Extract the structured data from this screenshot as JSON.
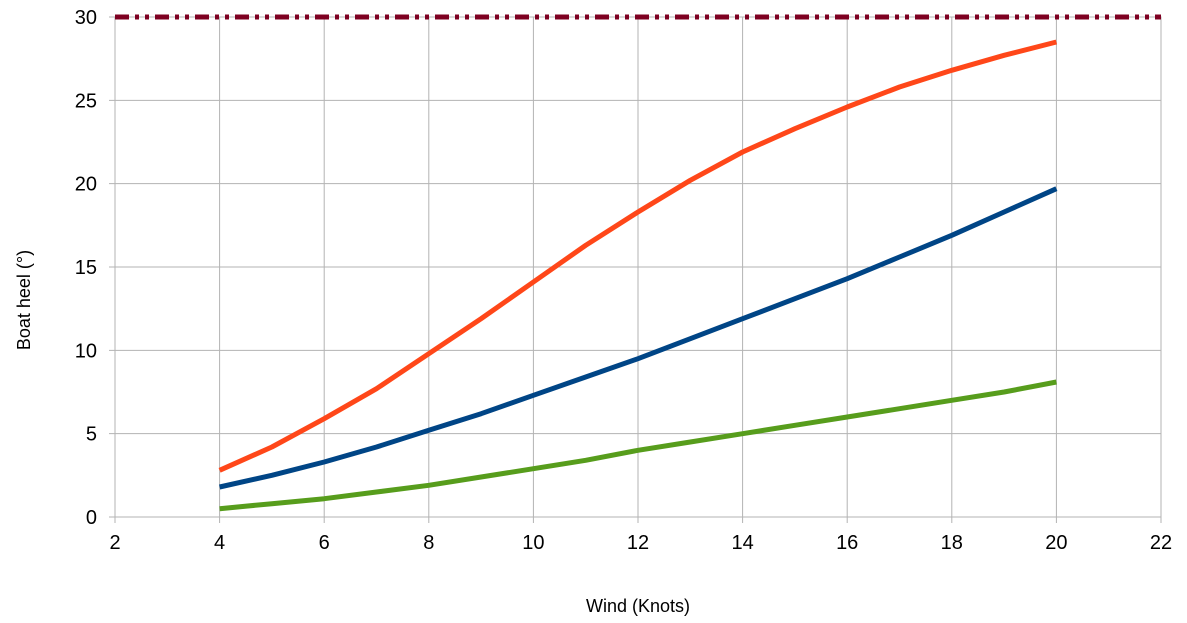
{
  "chart_data": {
    "type": "line",
    "title": "",
    "xlabel": "Wind (Knots)",
    "ylabel": "Boat heel (°)",
    "xlim": [
      2,
      22
    ],
    "ylim": [
      0,
      30
    ],
    "x_ticks": [
      2,
      4,
      6,
      8,
      10,
      12,
      14,
      16,
      18,
      20,
      22
    ],
    "y_ticks": [
      0,
      5,
      10,
      15,
      20,
      25,
      30
    ],
    "grid": true,
    "legend": "none",
    "series": [
      {
        "color": "#ff4719",
        "style": "solid",
        "x": [
          4,
          5,
          6,
          7,
          8,
          9,
          10,
          11,
          12,
          13,
          14,
          15,
          16,
          17,
          18,
          19,
          20
        ],
        "y": [
          2.8,
          4.2,
          5.9,
          7.7,
          9.8,
          11.9,
          14.1,
          16.3,
          18.3,
          20.2,
          21.9,
          23.3,
          24.6,
          25.8,
          26.8,
          27.7,
          28.5
        ]
      },
      {
        "color": "#004586",
        "style": "solid",
        "x": [
          4,
          5,
          6,
          7,
          8,
          9,
          10,
          11,
          12,
          13,
          14,
          15,
          16,
          17,
          18,
          19,
          20
        ],
        "y": [
          1.8,
          2.5,
          3.3,
          4.2,
          5.2,
          6.2,
          7.3,
          8.4,
          9.5,
          10.7,
          11.9,
          13.1,
          14.3,
          15.6,
          16.9,
          18.3,
          19.7
        ]
      },
      {
        "color": "#579d1c",
        "style": "solid",
        "x": [
          4,
          5,
          6,
          7,
          8,
          9,
          10,
          11,
          12,
          13,
          14,
          15,
          16,
          17,
          18,
          19,
          20
        ],
        "y": [
          0.5,
          0.8,
          1.1,
          1.5,
          1.9,
          2.4,
          2.9,
          3.4,
          4.0,
          4.5,
          5.0,
          5.5,
          6.0,
          6.5,
          7.0,
          7.5,
          8.1
        ]
      },
      {
        "color": "#7e0021",
        "style": "dash-dot-dot",
        "x": [
          2,
          22
        ],
        "y": [
          30,
          30
        ]
      }
    ]
  }
}
